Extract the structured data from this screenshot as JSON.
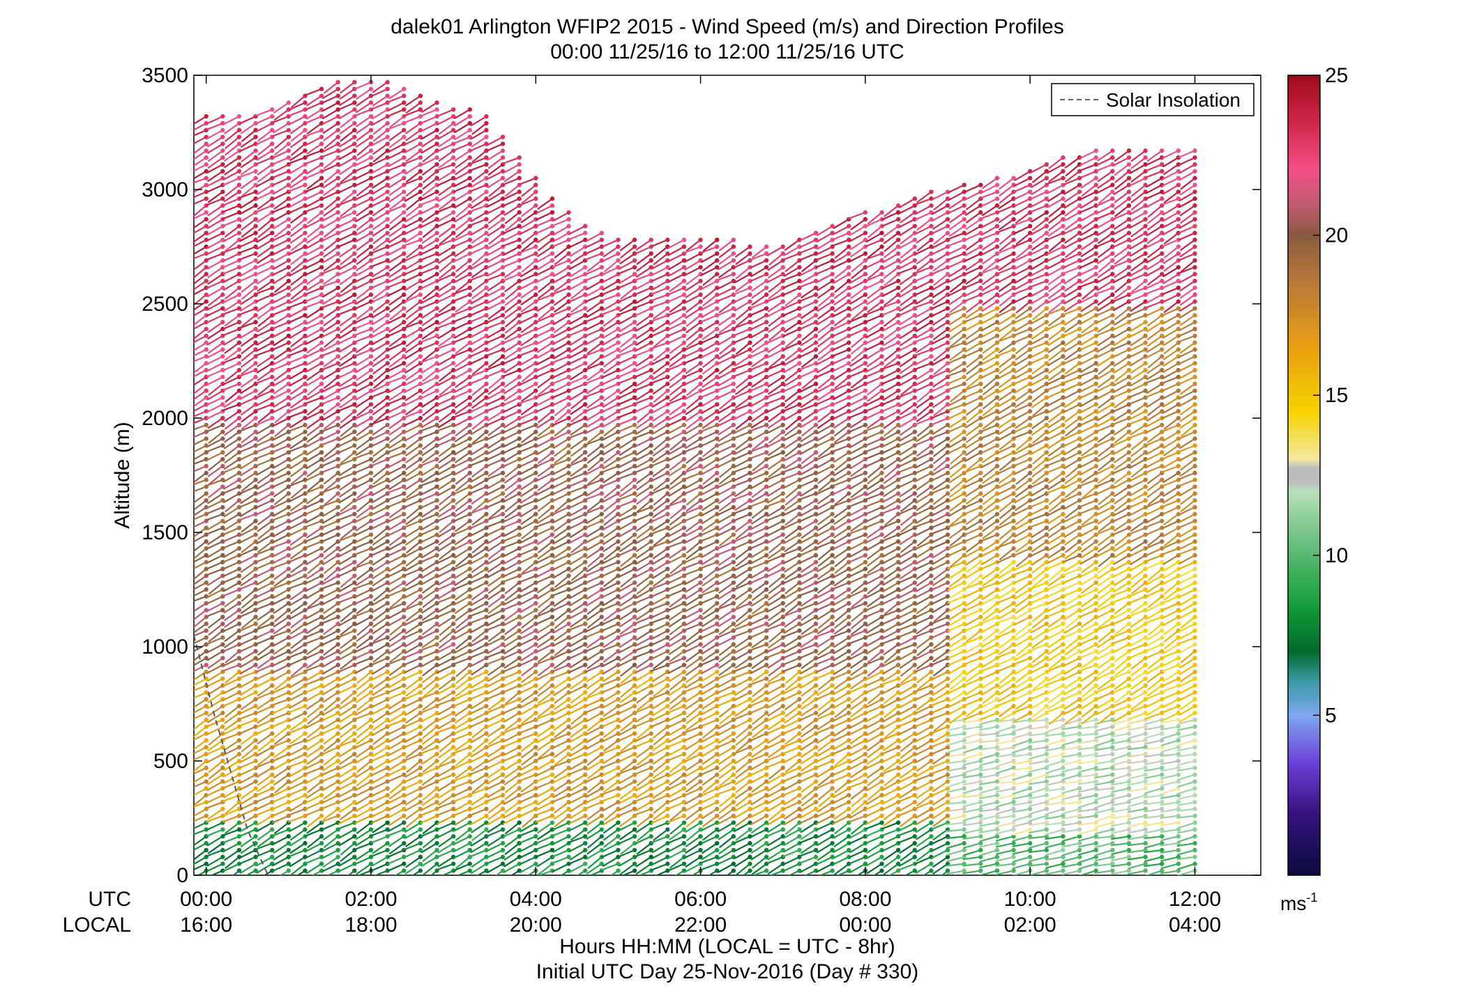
{
  "chart_data": {
    "type": "wind-barb profile",
    "title": "dalek01 Arlington WFIP2 2015 - Wind Speed (m/s) and Direction Profiles",
    "subtitle": "00:00 11/25/16 to 12:00 11/25/16  UTC",
    "ylabel": "Altitude (m)",
    "xlabel": "Hours HH:MM  (LOCAL = UTC - 8hr)",
    "xlabel2": "Initial UTC Day 25-Nov-2016 (Day # 330)",
    "row_label_utc": "UTC",
    "row_label_local": "LOCAL",
    "ylim": [
      0,
      3500
    ],
    "yticks": [
      0,
      500,
      1000,
      1500,
      2000,
      2500,
      3000,
      3500
    ],
    "ytick_labels": [
      "0",
      "500",
      "1000",
      "1500",
      "2000",
      "2500",
      "3000",
      "3500"
    ],
    "xlim_hours": [
      -0.15,
      12.8
    ],
    "xticks_hours": [
      0,
      2,
      4,
      6,
      8,
      10,
      12
    ],
    "xtick_utc": [
      "00:00",
      "02:00",
      "04:00",
      "06:00",
      "08:00",
      "10:00",
      "12:00"
    ],
    "xtick_local": [
      "16:00",
      "18:00",
      "20:00",
      "22:00",
      "00:00",
      "02:00",
      "04:00"
    ],
    "legend": {
      "label": "Solar Insolation",
      "placement": "top-right",
      "style": "dashed gray"
    },
    "colorbar": {
      "range": [
        0,
        25
      ],
      "ticks": [
        5,
        10,
        15,
        20,
        25
      ],
      "tick_labels": [
        "5",
        "10",
        "15",
        "20",
        "25"
      ],
      "unit_base": "ms",
      "unit_exp": "-1"
    },
    "solar_insolation": [
      [
        -0.15,
        1050
      ],
      [
        0.1,
        700
      ],
      [
        0.5,
        200
      ],
      [
        0.75,
        0
      ]
    ],
    "profile_time_step_hours": 0.2,
    "profile_vertical_step_m": 30,
    "speed_regions": [
      {
        "t0": 0.0,
        "t1": 9.0,
        "z0": 0,
        "z1": 250,
        "speed": 8
      },
      {
        "t0": 0.0,
        "t1": 9.0,
        "z0": 250,
        "z1": 900,
        "speed": 17
      },
      {
        "t0": 0.0,
        "t1": 9.0,
        "z0": 900,
        "z1": 2000,
        "speed": 20
      },
      {
        "t0": 0.0,
        "t1": 9.0,
        "z0": 2000,
        "z1": 3500,
        "speed": 23
      },
      {
        "t0": 9.0,
        "t1": 12.0,
        "z0": 0,
        "z1": 200,
        "speed": 10
      },
      {
        "t0": 9.0,
        "t1": 12.0,
        "z0": 200,
        "z1": 700,
        "speed": 12
      },
      {
        "t0": 9.0,
        "t1": 12.0,
        "z0": 700,
        "z1": 1400,
        "speed": 15
      },
      {
        "t0": 9.0,
        "t1": 12.0,
        "z0": 1400,
        "z1": 2500,
        "speed": 18
      },
      {
        "t0": 9.0,
        "t1": 12.0,
        "z0": 2500,
        "z1": 3200,
        "speed": 23
      }
    ],
    "max_altitude_profile": [
      [
        0.0,
        3330
      ],
      [
        0.6,
        3330
      ],
      [
        1.0,
        3400
      ],
      [
        1.6,
        3470
      ],
      [
        2.2,
        3470
      ],
      [
        3.4,
        3330
      ],
      [
        3.9,
        3100
      ],
      [
        4.4,
        2900
      ],
      [
        5.0,
        2780
      ],
      [
        6.0,
        2800
      ],
      [
        7.0,
        2750
      ],
      [
        8.0,
        2900
      ],
      [
        8.6,
        2980
      ],
      [
        9.5,
        3040
      ],
      [
        10.4,
        3160
      ],
      [
        11.2,
        3180
      ],
      [
        12.0,
        3180
      ]
    ]
  }
}
